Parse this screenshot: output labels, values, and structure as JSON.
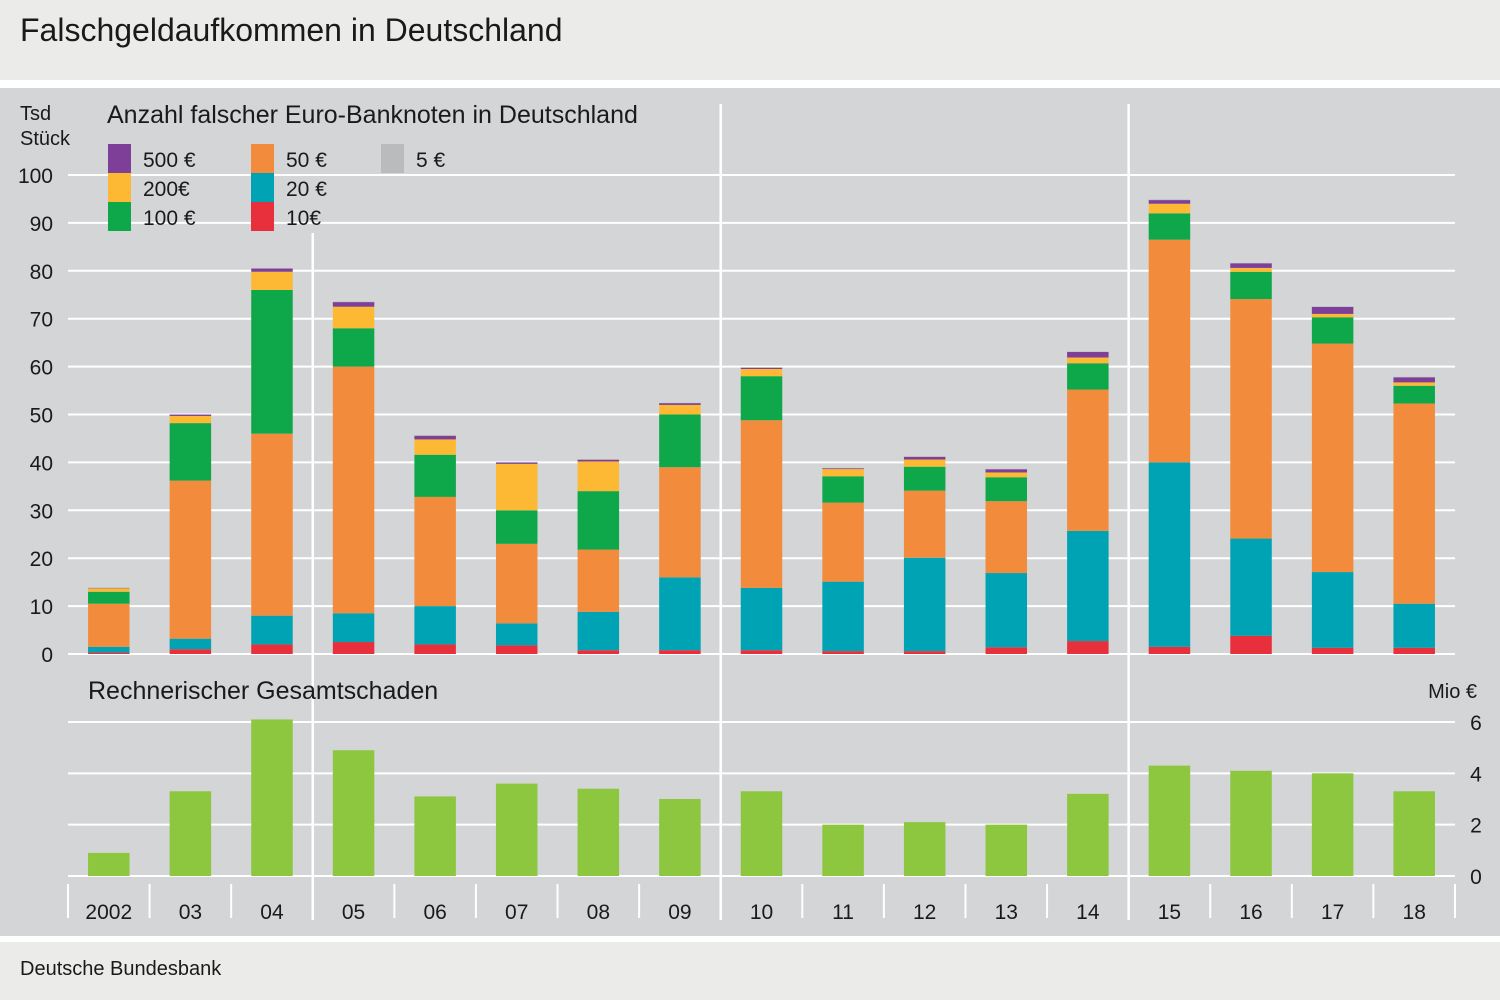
{
  "page": {
    "title": "Falschgeldaufkommen in Deutschland",
    "source": "Deutsche Bundesbank"
  },
  "chart_data": [
    {
      "type": "bar",
      "stacked": true,
      "title": "Anzahl falscher Euro-Banknoten in Deutschland",
      "ylabel_line1": "Tsd",
      "ylabel_line2": "Stück",
      "ylim": [
        0,
        100
      ],
      "yticks": [
        0,
        10,
        20,
        30,
        40,
        50,
        60,
        70,
        80,
        90,
        100
      ],
      "grid": true,
      "legend_position": "top-left",
      "categories": [
        "2002",
        "03",
        "04",
        "05",
        "06",
        "07",
        "08",
        "09",
        "10",
        "11",
        "12",
        "13",
        "14",
        "15",
        "16",
        "17",
        "18"
      ],
      "series": [
        {
          "name": "10€",
          "color": "#e8303c",
          "values": [
            0.3,
            1.0,
            2.0,
            2.5,
            2.0,
            1.8,
            0.8,
            0.8,
            0.8,
            0.6,
            0.6,
            1.4,
            2.7,
            1.5,
            3.8,
            1.3,
            1.3
          ]
        },
        {
          "name": "20 €",
          "color": "#00a3b4",
          "values": [
            1.2,
            2.2,
            6.0,
            6.0,
            8.0,
            4.6,
            8.0,
            15.2,
            13.0,
            14.5,
            19.5,
            15.5,
            23.0,
            38.5,
            20.3,
            15.8,
            9.2
          ]
        },
        {
          "name": "50 €",
          "color": "#f28c3c",
          "values": [
            9.0,
            33.0,
            38.0,
            51.5,
            22.8,
            16.6,
            13.0,
            23.0,
            35.0,
            16.5,
            14.0,
            15.0,
            29.5,
            46.5,
            50.0,
            47.7,
            41.8
          ]
        },
        {
          "name": "100 €",
          "color": "#0ea84a",
          "values": [
            2.5,
            12.0,
            30.0,
            8.0,
            8.8,
            7.0,
            12.2,
            11.0,
            9.2,
            5.5,
            5.0,
            5.0,
            5.5,
            5.5,
            5.7,
            5.5,
            3.7
          ]
        },
        {
          "name": "200€",
          "color": "#fdb933",
          "values": [
            0.7,
            1.5,
            3.8,
            4.5,
            3.2,
            9.7,
            6.2,
            2.0,
            1.5,
            1.5,
            1.5,
            1.0,
            1.2,
            2.0,
            0.8,
            0.7,
            0.7
          ]
        },
        {
          "name": "500 €",
          "color": "#7e3f98",
          "values": [
            0.1,
            0.3,
            0.7,
            1.0,
            0.8,
            0.3,
            0.4,
            0.4,
            0.3,
            0.2,
            0.6,
            0.7,
            1.2,
            0.8,
            1.0,
            1.5,
            1.1
          ]
        },
        {
          "name": "5 €",
          "color": "#b9bbbd",
          "values": [
            0.05,
            0.05,
            0.05,
            0.05,
            0.05,
            0.05,
            0.05,
            0.05,
            0.05,
            0.05,
            0.05,
            0.05,
            0.05,
            0.05,
            0.05,
            0.05,
            0.05
          ]
        }
      ]
    },
    {
      "type": "bar",
      "title": "Rechnerischer Gesamtschaden",
      "ylabel": "Mio €",
      "ylim": [
        0,
        6
      ],
      "yticks": [
        0,
        2,
        4,
        6
      ],
      "grid": true,
      "color": "#8dc63f",
      "categories": [
        "2002",
        "03",
        "04",
        "05",
        "06",
        "07",
        "08",
        "09",
        "10",
        "11",
        "12",
        "13",
        "14",
        "15",
        "16",
        "17",
        "18"
      ],
      "values": [
        0.9,
        3.3,
        6.1,
        4.9,
        3.1,
        3.6,
        3.4,
        3.0,
        3.3,
        2.0,
        2.1,
        2.0,
        3.2,
        4.3,
        4.1,
        4.0,
        3.3
      ]
    }
  ]
}
